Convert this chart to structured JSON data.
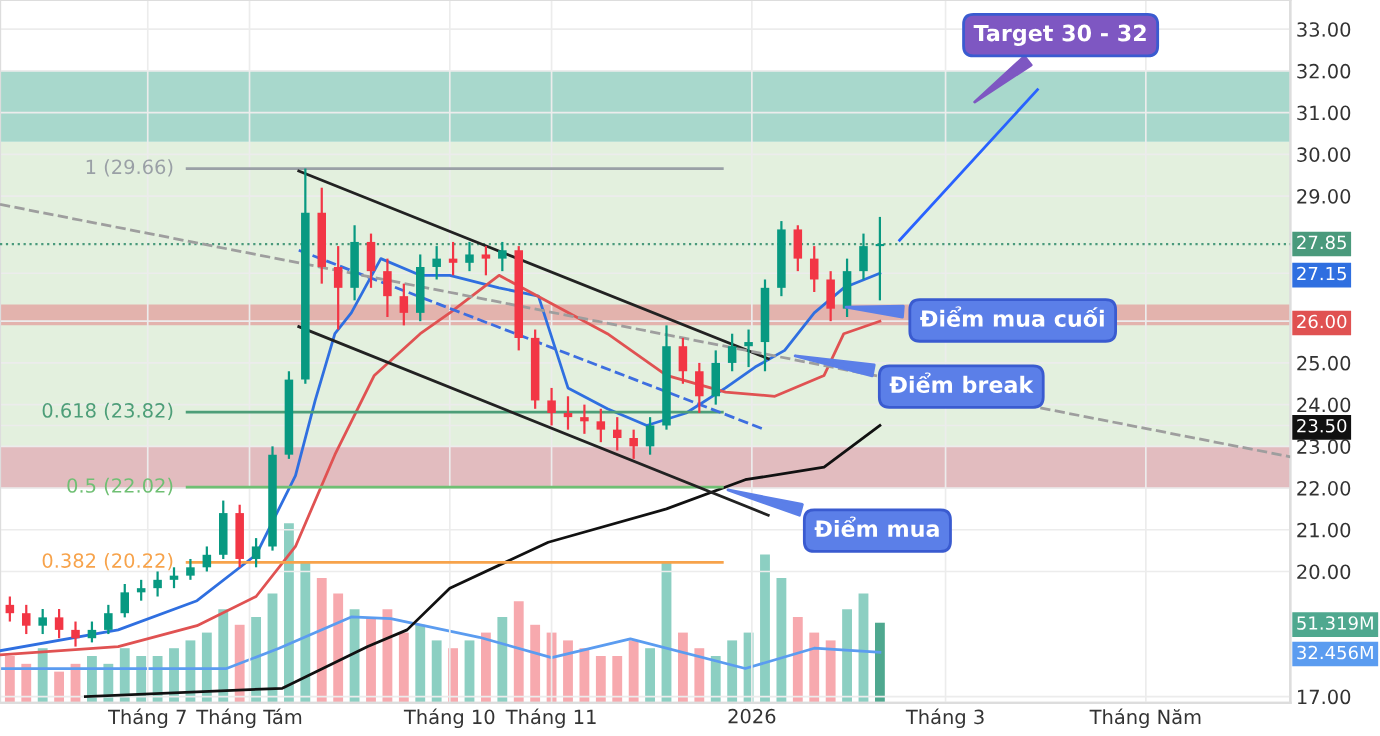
{
  "chart_data": {
    "type": "candlestick",
    "x": [
      "2025-05-20",
      "2025-05-25",
      "2025-05-30",
      "2025-06-04",
      "2025-06-09",
      "2025-06-14",
      "2025-06-19",
      "2025-06-24",
      "2025-06-29",
      "2025-07-04",
      "2025-07-09",
      "2025-07-14",
      "2025-07-19",
      "2025-07-24",
      "2025-07-29",
      "2025-08-03",
      "2025-08-08",
      "2025-08-13",
      "2025-08-18",
      "2025-08-23",
      "2025-08-28",
      "2025-09-02",
      "2025-09-07",
      "2025-09-12",
      "2025-09-17",
      "2025-09-22",
      "2025-09-27",
      "2025-10-02",
      "2025-10-07",
      "2025-10-12",
      "2025-10-17",
      "2025-10-22",
      "2025-10-27",
      "2025-11-01",
      "2025-11-06",
      "2025-11-11",
      "2025-11-16",
      "2025-11-21",
      "2025-11-26",
      "2025-12-01",
      "2025-12-06",
      "2025-12-11",
      "2025-12-16",
      "2025-12-21",
      "2025-12-26",
      "2025-12-31",
      "2026-01-05",
      "2026-01-10",
      "2026-01-15",
      "2026-01-20",
      "2026-01-25",
      "2026-01-30",
      "2026-02-04",
      "2026-02-09"
    ],
    "ohlc": [
      [
        19.2,
        19.4,
        18.8,
        19.0
      ],
      [
        19.0,
        19.2,
        18.5,
        18.7
      ],
      [
        18.7,
        19.1,
        18.5,
        18.9
      ],
      [
        18.9,
        19.1,
        18.4,
        18.6
      ],
      [
        18.6,
        18.8,
        18.2,
        18.4
      ],
      [
        18.4,
        18.8,
        18.3,
        18.6
      ],
      [
        18.6,
        19.2,
        18.5,
        19.0
      ],
      [
        19.0,
        19.7,
        18.9,
        19.5
      ],
      [
        19.5,
        19.8,
        19.3,
        19.6
      ],
      [
        19.6,
        20.0,
        19.4,
        19.8
      ],
      [
        19.8,
        20.1,
        19.6,
        19.9
      ],
      [
        19.9,
        20.3,
        19.8,
        20.1
      ],
      [
        20.1,
        20.6,
        20.0,
        20.4
      ],
      [
        20.4,
        21.7,
        20.3,
        21.4
      ],
      [
        21.4,
        21.6,
        20.1,
        20.3
      ],
      [
        20.3,
        20.8,
        20.1,
        20.6
      ],
      [
        20.6,
        23.0,
        20.5,
        22.8
      ],
      [
        22.8,
        24.8,
        22.7,
        24.6
      ],
      [
        24.6,
        29.66,
        24.5,
        28.6
      ],
      [
        28.6,
        29.2,
        26.9,
        27.3
      ],
      [
        27.3,
        27.8,
        25.8,
        26.8
      ],
      [
        26.8,
        28.3,
        26.5,
        27.9
      ],
      [
        27.9,
        28.1,
        26.8,
        27.2
      ],
      [
        27.2,
        27.5,
        26.1,
        26.6
      ],
      [
        26.6,
        26.9,
        25.9,
        26.2
      ],
      [
        26.2,
        27.6,
        26.0,
        27.3
      ],
      [
        27.3,
        27.8,
        27.0,
        27.5
      ],
      [
        27.5,
        27.9,
        27.1,
        27.4
      ],
      [
        27.4,
        27.9,
        27.2,
        27.6
      ],
      [
        27.6,
        27.8,
        27.1,
        27.5
      ],
      [
        27.5,
        27.9,
        27.2,
        27.7
      ],
      [
        27.7,
        27.8,
        25.3,
        25.6
      ],
      [
        25.6,
        25.8,
        23.9,
        24.1
      ],
      [
        24.1,
        24.4,
        23.5,
        23.8
      ],
      [
        23.8,
        24.2,
        23.4,
        23.7
      ],
      [
        23.7,
        24.0,
        23.3,
        23.6
      ],
      [
        23.6,
        23.9,
        23.1,
        23.4
      ],
      [
        23.4,
        23.7,
        22.9,
        23.2
      ],
      [
        23.2,
        23.4,
        22.7,
        23.0
      ],
      [
        23.0,
        23.7,
        22.8,
        23.5
      ],
      [
        23.5,
        25.9,
        23.4,
        25.4
      ],
      [
        25.4,
        25.6,
        24.5,
        24.8
      ],
      [
        24.8,
        25.0,
        23.8,
        24.2
      ],
      [
        24.2,
        25.3,
        24.0,
        25.0
      ],
      [
        25.0,
        25.7,
        24.8,
        25.4
      ],
      [
        25.4,
        25.8,
        24.9,
        25.5
      ],
      [
        25.5,
        27.0,
        24.8,
        26.8
      ],
      [
        26.8,
        28.4,
        26.6,
        28.2
      ],
      [
        28.2,
        28.3,
        27.2,
        27.5
      ],
      [
        27.5,
        27.8,
        26.7,
        27.0
      ],
      [
        27.0,
        27.2,
        26.0,
        26.3
      ],
      [
        26.3,
        27.5,
        26.1,
        27.2
      ],
      [
        27.2,
        28.1,
        27.0,
        27.8
      ],
      [
        27.8,
        28.5,
        26.5,
        27.85
      ]
    ],
    "colors": [
      "#f23645",
      "#f23645",
      "#089981",
      "#f23645",
      "#f23645",
      "#089981",
      "#089981",
      "#089981",
      "#089981",
      "#089981",
      "#089981",
      "#089981",
      "#089981",
      "#089981",
      "#f23645",
      "#089981",
      "#089981",
      "#089981",
      "#089981",
      "#f23645",
      "#f23645",
      "#089981",
      "#f23645",
      "#f23645",
      "#f23645",
      "#089981",
      "#089981",
      "#f23645",
      "#089981",
      "#f23645",
      "#089981",
      "#f23645",
      "#f23645",
      "#f23645",
      "#f23645",
      "#f23645",
      "#f23645",
      "#f23645",
      "#f23645",
      "#089981",
      "#089981",
      "#f23645",
      "#f23645",
      "#089981",
      "#089981",
      "#089981",
      "#089981",
      "#089981",
      "#f23645",
      "#f23645",
      "#f23645",
      "#089981",
      "#089981",
      "#089981"
    ],
    "series": [
      {
        "type": "bar",
        "axis": "y2",
        "values": [
          30,
          25,
          35,
          20,
          25,
          30,
          25,
          35,
          30,
          30,
          35,
          40,
          45,
          60,
          50,
          55,
          70,
          115,
          90,
          80,
          70,
          60,
          55,
          60,
          45,
          50,
          40,
          35,
          40,
          45,
          55,
          65,
          50,
          45,
          40,
          35,
          30,
          30,
          40,
          35,
          90,
          45,
          35,
          30,
          40,
          45,
          95,
          80,
          55,
          45,
          40,
          60,
          70,
          51.319
        ],
        "colors": [
          "#f7a9ae",
          "#f7a9ae",
          "#8ccfc2",
          "#f7a9ae",
          "#f7a9ae",
          "#8ccfc2",
          "#8ccfc2",
          "#8ccfc2",
          "#8ccfc2",
          "#8ccfc2",
          "#8ccfc2",
          "#8ccfc2",
          "#8ccfc2",
          "#8ccfc2",
          "#f7a9ae",
          "#8ccfc2",
          "#8ccfc2",
          "#8ccfc2",
          "#8ccfc2",
          "#f7a9ae",
          "#f7a9ae",
          "#8ccfc2",
          "#f7a9ae",
          "#f7a9ae",
          "#f7a9ae",
          "#8ccfc2",
          "#8ccfc2",
          "#f7a9ae",
          "#8ccfc2",
          "#f7a9ae",
          "#8ccfc2",
          "#f7a9ae",
          "#f7a9ae",
          "#f7a9ae",
          "#f7a9ae",
          "#f7a9ae",
          "#f7a9ae",
          "#f7a9ae",
          "#f7a9ae",
          "#8ccfc2",
          "#8ccfc2",
          "#f7a9ae",
          "#f7a9ae",
          "#8ccfc2",
          "#8ccfc2",
          "#8ccfc2",
          "#8ccfc2",
          "#8ccfc2",
          "#f7a9ae",
          "#f7a9ae",
          "#f7a9ae",
          "#8ccfc2",
          "#8ccfc2",
          "#4fa88f"
        ],
        "color": "#4fa88f"
      },
      {
        "type": "line",
        "axis": "y2",
        "color": "#5b9cf0",
        "x": [
          "2025-05-17",
          "2025-07-25",
          "2025-08-10",
          "2025-09-01",
          "2025-09-13",
          "2025-10-10",
          "2025-11-01",
          "2025-11-25",
          "2025-12-30",
          "2026-01-20",
          "2026-02-09"
        ],
        "values": [
          22,
          22,
          35,
          55,
          54,
          42,
          29,
          41,
          22,
          35,
          32.456
        ]
      },
      {
        "type": "line",
        "color": "#2f6fe0",
        "x": [
          "2025-05-17",
          "2025-06-22",
          "2025-07-16",
          "2025-08-03",
          "2025-08-15",
          "2025-08-21",
          "2025-08-27",
          "2025-09-01",
          "2025-09-10",
          "2025-09-22",
          "2025-10-01",
          "2025-10-16",
          "2025-10-28",
          "2025-11-06",
          "2025-11-18",
          "2025-11-30",
          "2025-12-12",
          "2025-12-24",
          "2026-01-02",
          "2026-01-11",
          "2026-01-20",
          "2026-01-29",
          "2026-02-09"
        ],
        "values": [
          18.1,
          18.6,
          19.3,
          20.4,
          22.3,
          24.1,
          25.7,
          26.2,
          27.5,
          27.1,
          27.1,
          26.8,
          26.6,
          24.4,
          23.9,
          23.5,
          23.8,
          24.4,
          24.9,
          25.3,
          26.2,
          26.8,
          27.15
        ]
      },
      {
        "type": "line",
        "color": "#e05252",
        "x": [
          "2025-05-17",
          "2025-06-22",
          "2025-07-16",
          "2025-08-03",
          "2025-08-15",
          "2025-08-27",
          "2025-09-08",
          "2025-09-22",
          "2025-10-01",
          "2025-10-16",
          "2025-11-18",
          "2025-12-06",
          "2025-12-24",
          "2026-01-08",
          "2026-01-23",
          "2026-01-29",
          "2026-02-09"
        ],
        "values": [
          18.0,
          18.2,
          18.7,
          19.4,
          20.6,
          22.8,
          24.7,
          25.7,
          26.2,
          27.1,
          25.7,
          24.7,
          24.3,
          24.2,
          24.7,
          25.7,
          26.0
        ]
      },
      {
        "type": "line",
        "color": "#111111",
        "x": [
          "2025-06-12",
          "2025-08-11",
          "2025-09-06",
          "2025-09-18",
          "2025-10-01",
          "2025-10-31",
          "2025-12-06",
          "2025-12-30",
          "2026-01-23",
          "2026-02-09"
        ],
        "values": [
          17.0,
          17.2,
          18.2,
          18.6,
          19.6,
          20.7,
          21.5,
          22.2,
          22.5,
          23.5
        ]
      },
      {
        "type": "line",
        "name": "1 (29.66)",
        "color": "#9aa0a6",
        "x": [
          "2025-07-13",
          "2025-12-23"
        ],
        "values": [
          29.66,
          29.66
        ]
      },
      {
        "type": "line",
        "name": "0.618 (23.82)",
        "color": "#4d9e78",
        "x": [
          "2025-07-13",
          "2025-12-23"
        ],
        "values": [
          23.82,
          23.82
        ]
      },
      {
        "type": "line",
        "name": "0.5 (22.02)",
        "color": "#6fbf73",
        "x": [
          "2025-07-13",
          "2025-12-23"
        ],
        "values": [
          22.02,
          22.02
        ]
      },
      {
        "type": "line",
        "name": "0.382 (20.22)",
        "color": "#f7a34b",
        "x": [
          "2025-07-13",
          "2025-12-23"
        ],
        "values": [
          20.22,
          20.22
        ]
      },
      {
        "type": "line",
        "color": "#222222",
        "x": [
          "2025-08-16",
          "2026-01-06"
        ],
        "values": [
          29.6,
          25.1
        ]
      },
      {
        "type": "line",
        "color": "#222222",
        "x": [
          "2025-08-16",
          "2026-01-06"
        ],
        "values": [
          25.87,
          21.35
        ]
      },
      {
        "type": "line",
        "color": "#3d6ee0",
        "line_style": "dashed",
        "x": [
          "2025-08-16",
          "2026-01-05"
        ],
        "values": [
          27.7,
          23.4
        ]
      },
      {
        "type": "line",
        "color": "#9e9e9e",
        "line_style": "dashed",
        "x": [
          "2025-05-17",
          "2026-06-14"
        ],
        "values": [
          28.8,
          22.75
        ]
      },
      {
        "type": "line",
        "color": "#2962ff",
        "x": [
          "2026-02-15",
          "2026-03-29"
        ],
        "values": [
          27.94,
          31.55
        ]
      }
    ],
    "bands": [
      {
        "axis": "y",
        "from": 23.0,
        "to": 30.3,
        "color": "#e3f0de"
      },
      {
        "axis": "y",
        "from": 30.3,
        "to": 32.0,
        "color": "#a8d8cc"
      },
      {
        "axis": "y",
        "from": 25.9,
        "to": 26.4,
        "color": "#e3b3ad"
      },
      {
        "axis": "y",
        "from": 22.0,
        "to": 23.0,
        "color": "#e2bcbf"
      }
    ],
    "ref_lines": [
      {
        "axis": "y",
        "value": 27.85,
        "label": "27.85",
        "color": "#4a9a7c",
        "line_style": "dotted"
      }
    ],
    "annotations": [
      "Target 30 - 32",
      {
        "text": "Điểm mua cuối",
        "x": "2026-01-28",
        "y": 26.35
      },
      "Điểm break",
      "Điểm mua"
    ],
    "xlim": [
      "2025-05-17",
      "2026-06-14"
    ],
    "xticks": [
      {
        "value": "2025-07-01",
        "label": "Tháng 7"
      },
      {
        "value": "2025-08-01",
        "label": "Tháng Tám"
      },
      {
        "value": "2025-10-01",
        "label": "Tháng 10"
      },
      {
        "value": "2025-11-01",
        "label": "Tháng 11"
      },
      {
        "value": "2026-01-01",
        "label": "2026"
      },
      {
        "value": "2026-03-01",
        "label": "Tháng 3"
      },
      {
        "value": "2026-05-01",
        "label": "Tháng Năm"
      }
    ],
    "ylim": [
      16.85,
      33.7
    ],
    "yticks": [
      {
        "value": 17,
        "label": "17.00"
      },
      {
        "value": 20,
        "label": "20.00"
      },
      {
        "value": 21,
        "label": "21.00"
      },
      {
        "value": 22,
        "label": "22.00"
      },
      {
        "value": 23,
        "label": "23.00"
      },
      {
        "value": 24,
        "label": "24.00"
      },
      {
        "value": 25,
        "label": "25.00"
      },
      {
        "value": 23.5,
        "label": "23.50"
      },
      {
        "value": 26,
        "label": "26.00"
      },
      {
        "value": 27.15,
        "label": "27.15"
      },
      {
        "value": 29,
        "label": "29.00"
      },
      {
        "value": 30,
        "label": "30.00"
      },
      {
        "value": 31,
        "label": "31.00"
      },
      {
        "value": 32,
        "label": "32.00"
      },
      {
        "value": 33,
        "label": "33.00"
      }
    ],
    "y2lim": [
      0,
      450
    ],
    "y2ticks": [
      {
        "value": 51.319,
        "label": "51.319M"
      },
      {
        "value": 32.456,
        "label": "32.456M"
      }
    ],
    "grid": true
  }
}
